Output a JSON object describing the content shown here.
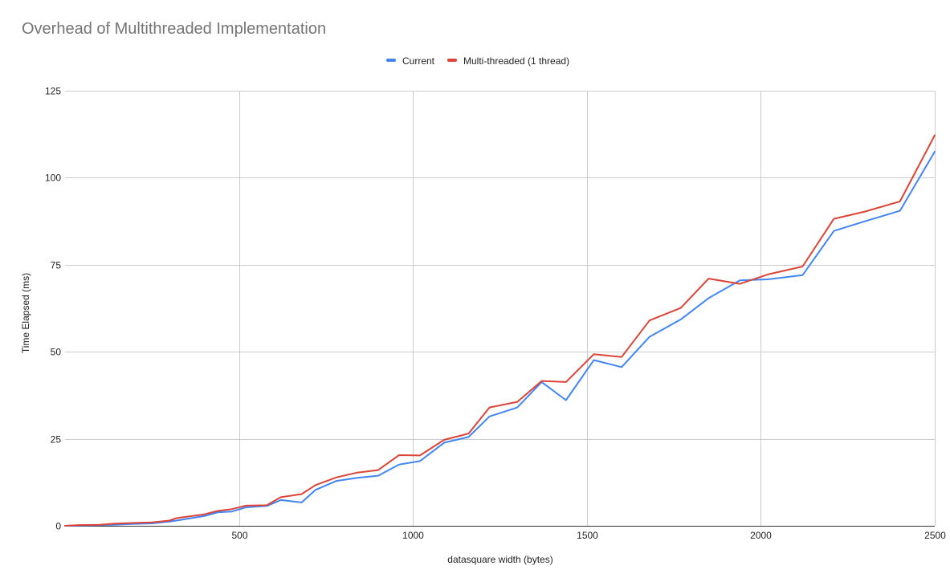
{
  "chart_data": {
    "type": "line",
    "title": "Overhead of Multithreaded Implementation",
    "xlabel": "datasquare width (bytes)",
    "ylabel": "Time Elapsed (ms)",
    "xlim": [
      0,
      2500
    ],
    "ylim": [
      0,
      125
    ],
    "x_ticks": [
      500,
      1000,
      1500,
      2000,
      2500
    ],
    "y_ticks": [
      0,
      25,
      50,
      75,
      100,
      125
    ],
    "grid": true,
    "legend_position": "top",
    "x": [
      0,
      40,
      100,
      140,
      190,
      250,
      300,
      320,
      400,
      440,
      480,
      520,
      580,
      620,
      680,
      720,
      780,
      840,
      900,
      960,
      1020,
      1090,
      1160,
      1220,
      1300,
      1370,
      1440,
      1520,
      1600,
      1680,
      1770,
      1850,
      1940,
      2020,
      2120,
      2210,
      2300,
      2400,
      2500
    ],
    "series": [
      {
        "name": "Current",
        "color": "#4285f4",
        "values": [
          0,
          0.1,
          0.2,
          0.3,
          0.5,
          0.7,
          1.2,
          1.5,
          2.8,
          3.9,
          4.1,
          5.3,
          5.7,
          7.4,
          6.7,
          10.3,
          12.9,
          13.8,
          14.4,
          17.6,
          18.6,
          23.9,
          25.5,
          31.4,
          34,
          41.3,
          36.1,
          47.6,
          45.6,
          54.3,
          59.3,
          65.4,
          70.5,
          70.8,
          72,
          84.7,
          87.5,
          90.5,
          107.5
        ]
      },
      {
        "name": "Multi-threaded (1 thread)",
        "color": "#db4437",
        "values": [
          0,
          0.2,
          0.3,
          0.6,
          0.8,
          1,
          1.5,
          2.2,
          3.3,
          4.3,
          4.8,
          5.8,
          5.9,
          8.2,
          9.1,
          11.7,
          13.9,
          15.3,
          16,
          20.3,
          20.2,
          24.7,
          26.5,
          34,
          35.6,
          41.6,
          41.3,
          49.3,
          48.5,
          59,
          62.6,
          71,
          69.5,
          72.2,
          74.5,
          88.2,
          90.3,
          93.2,
          112.2
        ]
      }
    ]
  }
}
